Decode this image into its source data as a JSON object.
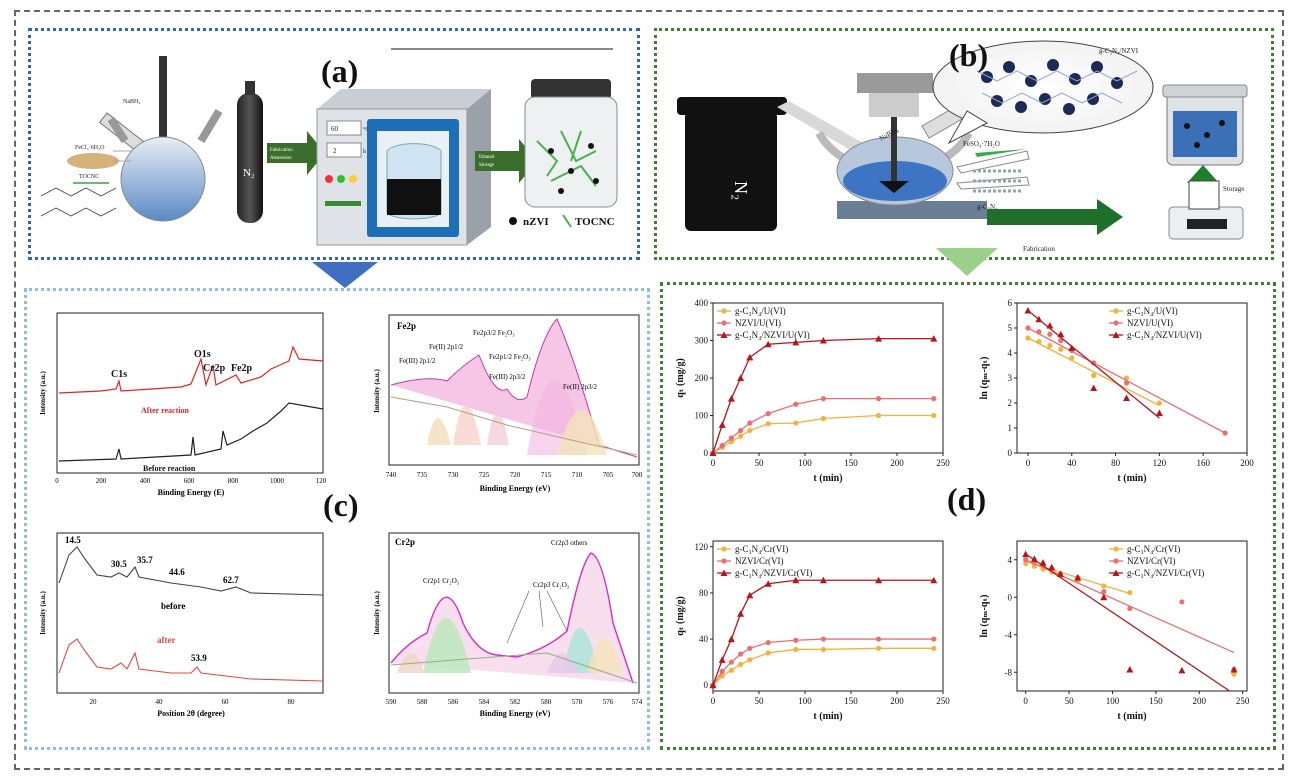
{
  "panels": {
    "a": {
      "label": "(a)",
      "reagents": [
        "FeCl₃·6H₂O",
        "TOCNC",
        "NaBH₄"
      ],
      "gas": "N₂",
      "arrow1": [
        "Fabrication",
        "Abstersion"
      ],
      "oven": {
        "temp": "60",
        "temp_unit": "°C",
        "time": "2",
        "time_unit": "h"
      },
      "arrow2": [
        "Ethanol",
        "Storage"
      ],
      "legend": [
        "nZVI",
        "TOCNC"
      ]
    },
    "b": {
      "label": "(b)",
      "gas": "N₂",
      "reagent": "NaBH₄",
      "salt": "FeSO₄·7H₂O",
      "support": "g-C₃N₄",
      "product": "g-C₃N₄/NZVI",
      "fabrication": "Fabrication",
      "storage": "Storage"
    },
    "c": {
      "label": "(c)",
      "survey": {
        "peaks": [
          "O1s",
          "C1s",
          "Cr2p",
          "Fe2p"
        ],
        "after": "After reaction",
        "before": "Before reaction",
        "xlabel": "Binding Energy (E)",
        "ylabel": "Intensity (a.u.)",
        "xticks": [
          "0",
          "200",
          "400",
          "600",
          "800",
          "1000",
          "120"
        ]
      },
      "fe2p": {
        "title": "Fe2p",
        "labels": [
          "Fe2p3/2 Fe₂O₃",
          "Fe(II) 2p1/2",
          "Fe2p1/2 Fe₂O₃",
          "Fe(III) 2p1/2",
          "Fe(III) 2p3/2",
          "Fe(II) 2p3/2"
        ],
        "xlabel": "Binding Energy (eV)",
        "ylabel": "Intensity (a.u.)",
        "xticks": [
          "740",
          "735",
          "730",
          "725",
          "720",
          "715",
          "710",
          "705",
          "700"
        ]
      },
      "xrd": {
        "peaks_before": [
          "14.5",
          "30.5",
          "35.7",
          "44.6",
          "62.7"
        ],
        "before": "before",
        "after": "after",
        "peak_after": "53.9",
        "xlabel": "Position 2θ (degree)",
        "ylabel": "Intensity (a.u.)",
        "xticks": [
          "20",
          "40",
          "60",
          "80"
        ]
      },
      "cr2p": {
        "title": "Cr2p",
        "labels": [
          "Cr2p3 others",
          "Cr2p1 Cr₂O₃",
          "Cr2p3 Cr₂O₃"
        ],
        "xlabel": "Binding Energy (eV)",
        "ylabel": "Intensity (a.u.)",
        "xticks": [
          "590",
          "588",
          "586",
          "584",
          "582",
          "580",
          "578",
          "576",
          "574"
        ]
      }
    },
    "d": {
      "label": "(d)"
    }
  },
  "chart_data": [
    {
      "type": "line",
      "xlabel": "t (min)",
      "ylabel": "qₜ (mg/g)",
      "xlim": [
        0,
        250
      ],
      "ylim": [
        0,
        400
      ],
      "xticks": [
        "0",
        "50",
        "100",
        "150",
        "200",
        "250"
      ],
      "yticks": [
        "0",
        "100",
        "200",
        "300",
        "400"
      ],
      "legend_position": "top-left",
      "x": [
        0,
        10,
        20,
        30,
        40,
        60,
        90,
        120,
        180,
        240
      ],
      "series": [
        {
          "name": "g-C₃N₄/U(VI)",
          "color": "#f4b13c",
          "marker": "circle",
          "values": [
            0,
            15,
            30,
            45,
            60,
            78,
            80,
            92,
            100,
            100
          ]
        },
        {
          "name": "NZVI/U(VI)",
          "color": "#e8716f",
          "marker": "circle",
          "values": [
            0,
            20,
            40,
            60,
            80,
            105,
            130,
            145,
            145,
            145
          ]
        },
        {
          "name": "g-C₃N₄/NZVI/U(VI)",
          "color": "#b8141c",
          "marker": "triangle",
          "values": [
            0,
            75,
            145,
            200,
            255,
            290,
            295,
            300,
            305,
            305
          ]
        }
      ]
    },
    {
      "type": "scatter",
      "xlabel": "t (min)",
      "ylabel": "ln (qₘ-qₜ)",
      "xlim": [
        -10,
        200
      ],
      "ylim": [
        0,
        6
      ],
      "xticks": [
        "0",
        "40",
        "80",
        "120",
        "160",
        "200"
      ],
      "yticks": [
        "0",
        "1",
        "2",
        "3",
        "4",
        "5",
        "6"
      ],
      "legend_position": "top-right",
      "series": [
        {
          "name": "g-C₃N₄/U(VI)",
          "color": "#f4b13c",
          "marker": "circle",
          "x": [
            0,
            10,
            20,
            30,
            40,
            60,
            90,
            120
          ],
          "y": [
            4.6,
            4.45,
            4.3,
            4.15,
            3.8,
            3.1,
            3.0,
            2.0
          ],
          "fit": [
            [
              0,
              4.6
            ],
            [
              120,
              1.9
            ]
          ]
        },
        {
          "name": "NZVI/U(VI)",
          "color": "#e8716f",
          "marker": "circle",
          "x": [
            0,
            10,
            20,
            30,
            40,
            60,
            90,
            180
          ],
          "y": [
            5.0,
            4.85,
            4.75,
            4.5,
            4.1,
            3.6,
            2.8,
            0.8
          ],
          "fit": [
            [
              0,
              5.0
            ],
            [
              180,
              0.8
            ]
          ]
        },
        {
          "name": "g-C₃N₄/NZVI/U(VI)",
          "color": "#b8141c",
          "marker": "triangle",
          "x": [
            0,
            10,
            20,
            30,
            40,
            60,
            90,
            120
          ],
          "y": [
            5.7,
            5.35,
            5.1,
            4.75,
            4.2,
            2.6,
            2.2,
            1.6
          ],
          "fit": [
            [
              0,
              5.7
            ],
            [
              120,
              1.4
            ]
          ]
        }
      ]
    },
    {
      "type": "line",
      "xlabel": "t (min)",
      "ylabel": "qₜ (mg/g)",
      "xlim": [
        0,
        250
      ],
      "ylim": [
        -5,
        125
      ],
      "xticks": [
        "0",
        "50",
        "100",
        "150",
        "200",
        "250"
      ],
      "yticks": [
        "0",
        "40",
        "80",
        "120"
      ],
      "legend_position": "top-left",
      "x": [
        0,
        10,
        20,
        30,
        40,
        60,
        90,
        120,
        180,
        240
      ],
      "series": [
        {
          "name": "g-C₃N₄/Cr(VI)",
          "color": "#f4b13c",
          "marker": "circle",
          "values": [
            0,
            8,
            13,
            18,
            22,
            28,
            31,
            31,
            32,
            32
          ]
        },
        {
          "name": "NZVI/Cr(VI)",
          "color": "#e8716f",
          "marker": "circle",
          "values": [
            0,
            12,
            20,
            27,
            32,
            37,
            39,
            40,
            40,
            40
          ]
        },
        {
          "name": "g-C₃N₄/NZVI/Cr(VI)",
          "color": "#b8141c",
          "marker": "triangle",
          "values": [
            0,
            22,
            40,
            62,
            78,
            88,
            91,
            91,
            91,
            91
          ]
        }
      ]
    },
    {
      "type": "scatter",
      "xlabel": "t (min)",
      "ylabel": "ln (qₘ-qₜ)",
      "xlim": [
        -10,
        255
      ],
      "ylim": [
        -10,
        6
      ],
      "xticks": [
        "0",
        "50",
        "100",
        "150",
        "200",
        "250"
      ],
      "yticks": [
        "-8",
        "-4",
        "0",
        "4"
      ],
      "legend_position": "top-right",
      "series": [
        {
          "name": "g-C₃N₄/Cr(VI)",
          "color": "#f4b13c",
          "marker": "circle",
          "x": [
            0,
            10,
            20,
            30,
            40,
            60,
            90,
            120,
            240
          ],
          "y": [
            3.6,
            3.3,
            3.0,
            2.7,
            2.3,
            1.8,
            1.2,
            0.5,
            -8.2
          ],
          "fit": [
            [
              0,
              3.8
            ],
            [
              120,
              0.4
            ]
          ]
        },
        {
          "name": "NZVI/Cr(VI)",
          "color": "#e8716f",
          "marker": "circle",
          "x": [
            0,
            10,
            20,
            30,
            40,
            60,
            90,
            120,
            180,
            240
          ],
          "y": [
            4.0,
            3.7,
            3.4,
            3.0,
            2.5,
            2.1,
            0.6,
            -1.2,
            -0.5,
            -7.7
          ],
          "fit": [
            [
              0,
              4.0
            ],
            [
              240,
              -5.9
            ]
          ]
        },
        {
          "name": "g-C₃N₄/NZVI/Cr(VI)",
          "color": "#b8141c",
          "marker": "triangle",
          "x": [
            0,
            10,
            20,
            30,
            40,
            60,
            90,
            120,
            180,
            240
          ],
          "y": [
            4.6,
            4.1,
            3.7,
            3.2,
            2.5,
            2.1,
            0.0,
            -7.7,
            -7.8,
            -7.7
          ],
          "fit": [
            [
              0,
              4.6
            ],
            [
              235,
              -10.0
            ]
          ]
        }
      ]
    }
  ]
}
